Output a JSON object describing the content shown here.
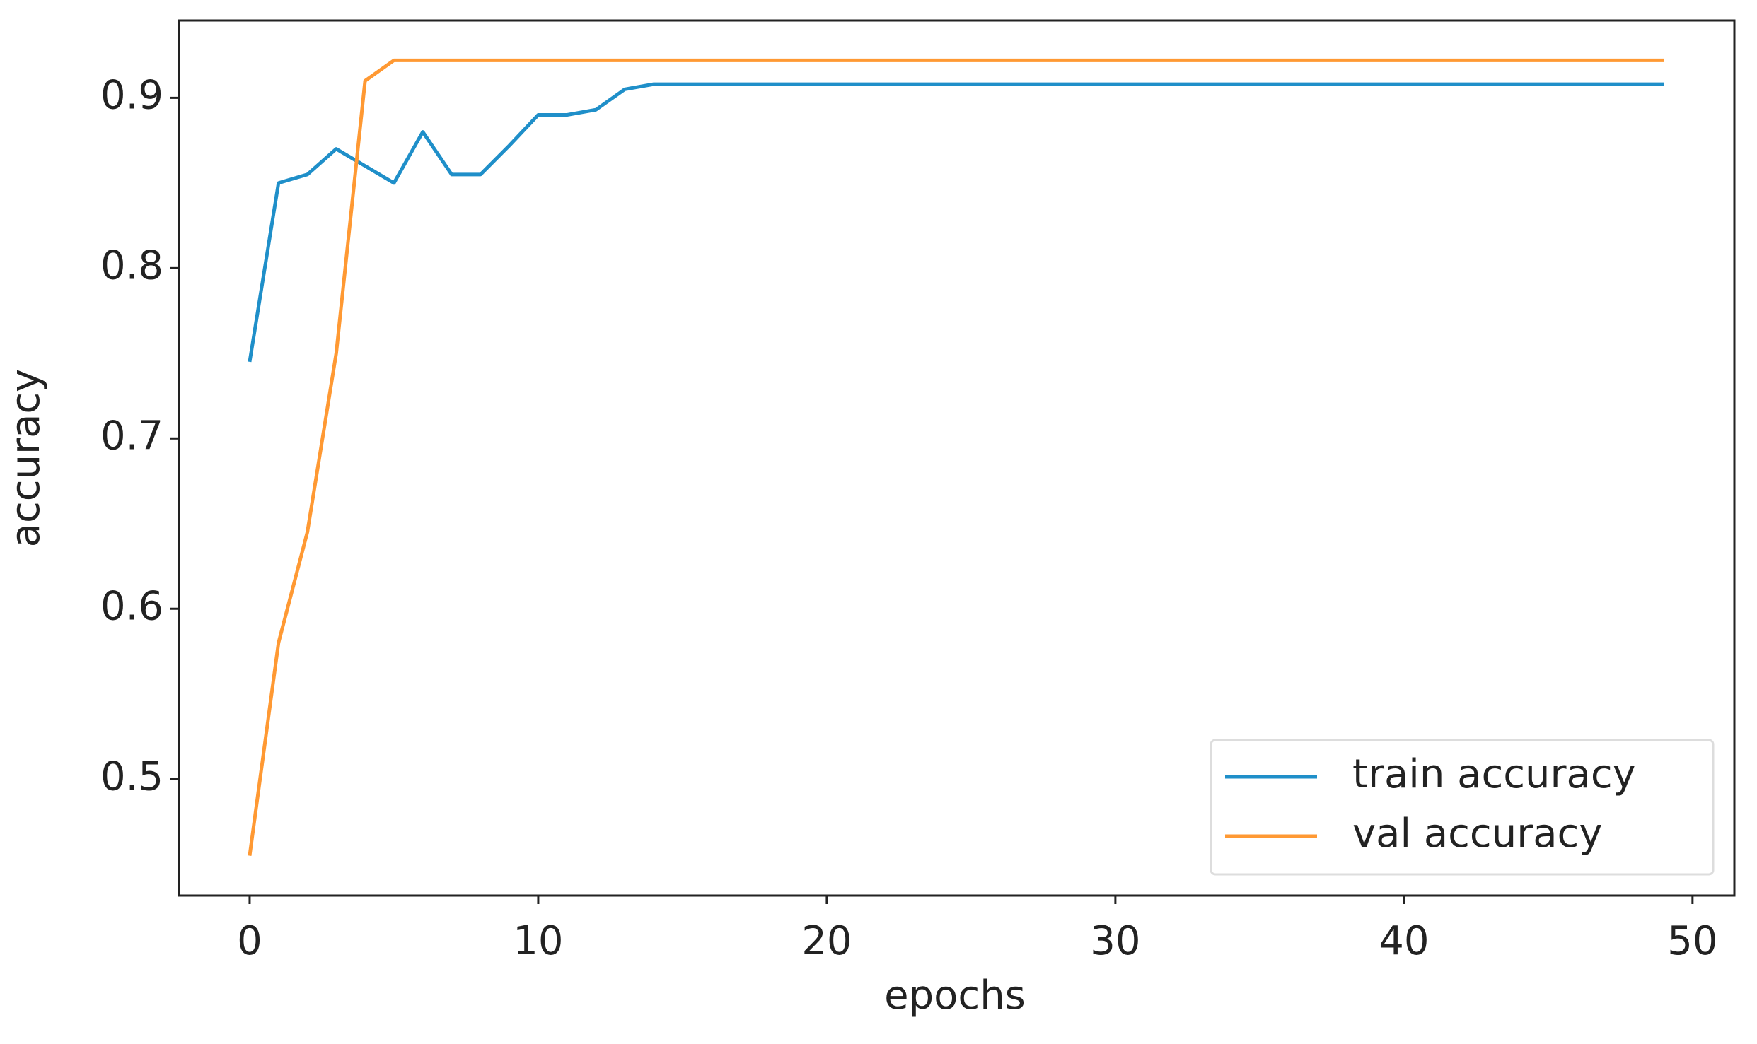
{
  "chart_data": {
    "type": "line",
    "x_label": "epochs",
    "y_label": "accuracy",
    "x": [
      0,
      1,
      2,
      3,
      4,
      5,
      6,
      7,
      8,
      9,
      10,
      11,
      12,
      13,
      14,
      15,
      16,
      17,
      18,
      19,
      20,
      21,
      22,
      23,
      24,
      25,
      26,
      27,
      28,
      29,
      30,
      31,
      32,
      33,
      34,
      35,
      36,
      37,
      38,
      39,
      40,
      41,
      42,
      43,
      44,
      45,
      46,
      47,
      48,
      49
    ],
    "series": [
      {
        "name": "train accuracy",
        "color": "#1f8fc9",
        "values": [
          0.745,
          0.85,
          0.855,
          0.87,
          0.86,
          0.85,
          0.88,
          0.855,
          0.855,
          0.872,
          0.89,
          0.89,
          0.893,
          0.905,
          0.908,
          0.908,
          0.908,
          0.908,
          0.908,
          0.908,
          0.908,
          0.908,
          0.908,
          0.908,
          0.908,
          0.908,
          0.908,
          0.908,
          0.908,
          0.908,
          0.908,
          0.908,
          0.908,
          0.908,
          0.908,
          0.908,
          0.908,
          0.908,
          0.908,
          0.908,
          0.908,
          0.908,
          0.908,
          0.908,
          0.908,
          0.908,
          0.908,
          0.908,
          0.908,
          0.908
        ]
      },
      {
        "name": "val accuracy",
        "color": "#ff9933",
        "values": [
          0.455,
          0.58,
          0.645,
          0.75,
          0.91,
          0.922,
          0.922,
          0.922,
          0.922,
          0.922,
          0.922,
          0.922,
          0.922,
          0.922,
          0.922,
          0.922,
          0.922,
          0.922,
          0.922,
          0.922,
          0.922,
          0.922,
          0.922,
          0.922,
          0.922,
          0.922,
          0.922,
          0.922,
          0.922,
          0.922,
          0.922,
          0.922,
          0.922,
          0.922,
          0.922,
          0.922,
          0.922,
          0.922,
          0.922,
          0.922,
          0.922,
          0.922,
          0.922,
          0.922,
          0.922,
          0.922,
          0.922,
          0.922,
          0.922,
          0.922
        ]
      }
    ],
    "xlim": [
      -2.45,
      51.45
    ],
    "xticks": [
      0,
      10,
      20,
      30,
      40,
      50
    ],
    "ylim": [
      0.4316,
      0.9454
    ],
    "yticks": [
      0.5,
      0.6,
      0.7,
      0.8,
      0.9
    ],
    "grid": false,
    "legend": "lower right"
  }
}
